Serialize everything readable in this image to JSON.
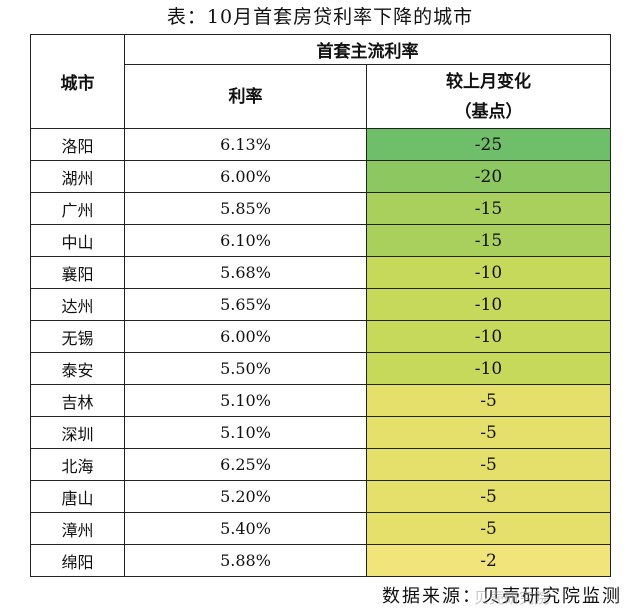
{
  "title": "表：10月首套房贷利率下降的城市",
  "header": {
    "city": "城市",
    "group": "首套主流利率",
    "rate": "利率",
    "change": "较上月变化",
    "unit": "（基点）"
  },
  "rows": [
    {
      "city": "洛阳",
      "rate": "6.13%",
      "change": "-25",
      "color": "#6fbf6a"
    },
    {
      "city": "湖州",
      "rate": "6.00%",
      "change": "-20",
      "color": "#8cc761"
    },
    {
      "city": "广州",
      "rate": "5.85%",
      "change": "-15",
      "color": "#a9cf5c"
    },
    {
      "city": "中山",
      "rate": "6.10%",
      "change": "-15",
      "color": "#a9cf5c"
    },
    {
      "city": "襄阳",
      "rate": "5.68%",
      "change": "-10",
      "color": "#c7d95a"
    },
    {
      "city": "达州",
      "rate": "5.65%",
      "change": "-10",
      "color": "#c7d95a"
    },
    {
      "city": "无锡",
      "rate": "6.00%",
      "change": "-10",
      "color": "#c7d95a"
    },
    {
      "city": "泰安",
      "rate": "5.50%",
      "change": "-10",
      "color": "#c7d95a"
    },
    {
      "city": "吉林",
      "rate": "5.10%",
      "change": "-5",
      "color": "#e4e06b"
    },
    {
      "city": "深圳",
      "rate": "5.10%",
      "change": "-5",
      "color": "#e4e06b"
    },
    {
      "city": "北海",
      "rate": "6.25%",
      "change": "-5",
      "color": "#e4e06b"
    },
    {
      "city": "唐山",
      "rate": "5.20%",
      "change": "-5",
      "color": "#e4e06b"
    },
    {
      "city": "漳州",
      "rate": "5.40%",
      "change": "-5",
      "color": "#e4e06b"
    },
    {
      "city": "绵阳",
      "rate": "5.88%",
      "change": "-2",
      "color": "#f0e47a"
    }
  ],
  "footer": "数据来源：贝壳研究院监测",
  "watermark": "贝壳研究院"
}
